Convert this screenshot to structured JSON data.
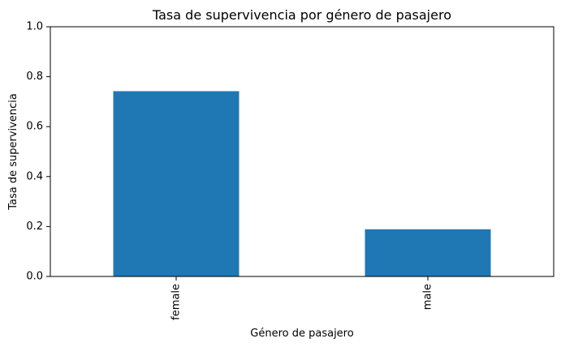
{
  "chart_data": {
    "type": "bar",
    "title": "Tasa de supervivencia por género de pasajero",
    "xlabel": "Género de pasajero",
    "ylabel": "Tasa de supervivencia",
    "categories": [
      "female",
      "male"
    ],
    "values": [
      0.742,
      0.189
    ],
    "ylim": [
      0,
      1.0
    ],
    "yticks": [
      "0.0",
      "0.2",
      "0.4",
      "0.6",
      "0.8",
      "1.0"
    ],
    "xtick_rotation": "vertical",
    "grid": false,
    "legend": "none",
    "bar_color": "#1f77b4"
  }
}
